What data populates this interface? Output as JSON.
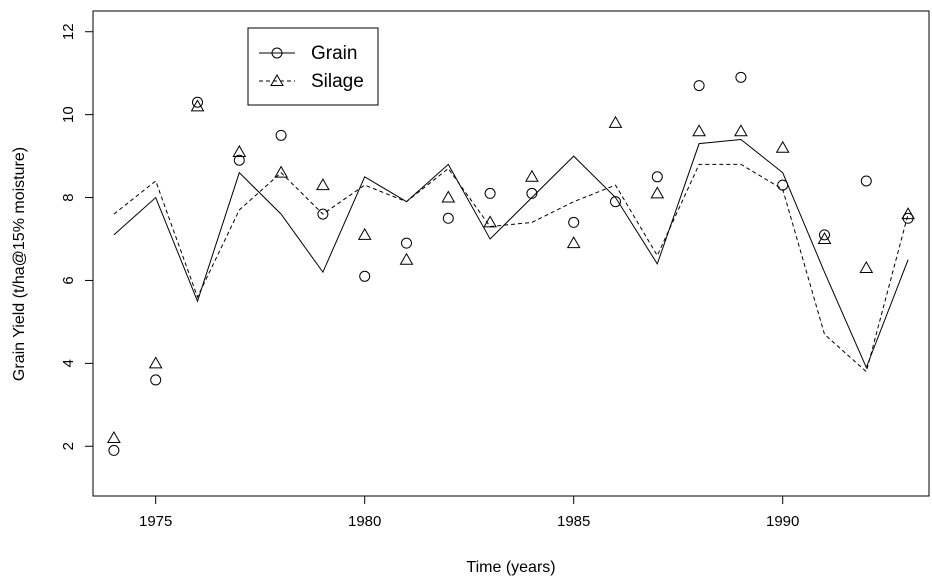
{
  "chart_data": {
    "type": "line",
    "xlabel": "Time (years)",
    "ylabel": "Grain Yield (t/ha@15% moisture)",
    "xlim": [
      1973.5,
      1993.5
    ],
    "ylim": [
      0.8,
      12.5
    ],
    "x_ticks": [
      1975,
      1980,
      1985,
      1990
    ],
    "y_ticks": [
      2,
      4,
      6,
      8,
      10,
      12
    ],
    "grid": false,
    "legend_position": "top-left",
    "x": [
      1974,
      1975,
      1976,
      1977,
      1978,
      1979,
      1980,
      1981,
      1982,
      1983,
      1984,
      1985,
      1986,
      1987,
      1988,
      1989,
      1990,
      1991,
      1992,
      1993
    ],
    "series": [
      {
        "name": "Grain",
        "marker": "circle",
        "line_style": "solid",
        "observed": [
          1.9,
          3.6,
          10.3,
          8.9,
          9.5,
          7.6,
          6.1,
          6.9,
          7.5,
          8.1,
          8.1,
          7.4,
          7.9,
          8.5,
          10.7,
          10.9,
          8.3,
          7.1,
          8.4,
          7.5
        ],
        "fitted": [
          7.1,
          8.0,
          5.5,
          8.6,
          7.6,
          6.2,
          8.5,
          7.9,
          8.8,
          7.0,
          8.0,
          9.0,
          8.0,
          6.4,
          9.3,
          9.4,
          8.6,
          6.2,
          3.9,
          6.5
        ]
      },
      {
        "name": "Silage",
        "marker": "triangle",
        "line_style": "dashed",
        "observed": [
          2.2,
          4.0,
          10.2,
          9.1,
          8.6,
          8.3,
          7.1,
          6.5,
          8.0,
          7.4,
          8.5,
          6.9,
          9.8,
          8.1,
          9.6,
          9.6,
          9.2,
          7.0,
          6.3,
          7.6
        ],
        "fitted": [
          7.6,
          8.4,
          5.6,
          7.7,
          8.6,
          7.6,
          8.3,
          7.9,
          8.7,
          7.3,
          7.4,
          7.9,
          8.3,
          6.6,
          8.8,
          8.8,
          8.2,
          4.7,
          3.8,
          7.6
        ]
      }
    ]
  }
}
